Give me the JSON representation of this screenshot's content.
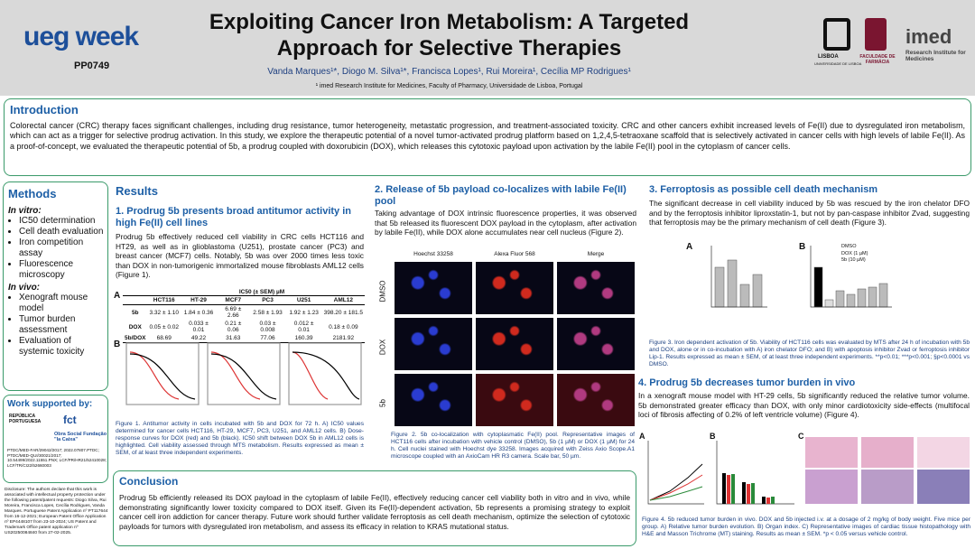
{
  "header": {
    "logo": "ueg week",
    "code": "PP0749",
    "title": "Exploiting Cancer Iron Metabolism: A Targeted Approach for Selective Therapies",
    "authors": "Vanda Marques¹*, Diogo M. Silva¹*, Francisca Lopes¹, Rui Moreira¹, Cecília MP Rodrigues¹",
    "affiliation": "¹ imed Research Institute for Medicines, Faculty of Pharmacy, Universidade de Lisboa, Portugal",
    "ulisboa": "LISBOA",
    "ulisboa_sub": "UNIVERSIDADE DE LISBOA",
    "ffarm": "FACULDADE DE FARMÁCIA",
    "imed": "imed",
    "imed_sub": "Research Institute for Medicines"
  },
  "introduction": {
    "heading": "Introduction",
    "text": "Colorectal cancer (CRC) therapy faces significant challenges, including drug resistance, tumor heterogeneity, metastatic progression, and treatment-associated toxicity. CRC and other cancers exhibit increased levels of Fe(II) due to dysregulated iron metabolism, which can act as a trigger for selective prodrug activation. In this study, we explore the therapeutic potential of a novel tumor-activated prodrug platform based on 1,2,4,5-tetraoxane scaffold that is selectively activated in cancer cells with high levels of labile Fe(II). As a proof-of-concept, we evaluated the therapeutic potential of 5b, a prodrug coupled with doxorubicin (DOX), which releases this cytotoxic payload upon activation by the labile Fe(II) pool in the cytoplasm of cancer cells."
  },
  "methods": {
    "heading": "Methods",
    "in_vitro_label": "In vitro:",
    "in_vitro": [
      "IC50 determination",
      "Cell death evaluation",
      "Iron competition assay",
      "Fluorescence microscopy"
    ],
    "in_vivo_label": "In vivo:",
    "in_vivo": [
      "Xenograft mouse model",
      "Tumor burden assessment",
      "Evaluation of systemic toxicity"
    ]
  },
  "support": {
    "heading": "Work supported by:",
    "funders": [
      "REPÚBLICA PORTUGUESA",
      "fct",
      "Obra Social Fundação \"la Caixa\""
    ],
    "grants": "PTDC/MED-FAR/29042/2017; 2022.07807.PTDC; PTDC/MED-QUI/30021/2017; 10.54499/2022.11551.PNX; LCF/PR/HR21/52410028; LCF/TR/CI22/52660003"
  },
  "disclosure": "Disclosure: The authors declare that this work is associated with intellectual property protection under the following patent/patent requests: Diogo Silva, Rui Moreira, Francisca Lopes, Cecília Rodrigues, Vanda Marques. Portuguese Patent Application nº PT117644 from 16-12-2021; European Patent Office Application nº EP4448107 from 23-10-2024; US Patent and Trademark Office patent application nº US20250084840 from 27-02-2025.",
  "results": {
    "heading": "Results",
    "section1": {
      "heading": "1. Prodrug 5b presents broad antitumor activity in high Fe(II) cell lines",
      "text": "Prodrug 5b effectively reduced cell viability in CRC cells HCT116 and HT29, as well as in glioblastoma (U251), prostate cancer (PC3) and breast cancer (MCF7) cells. Notably, 5b was over 2000 times less toxic than DOX in non-tumorigenic immortalized mouse fibroblasts AML12 cells (Figure 1).",
      "panel_a": "A",
      "panel_b": "B",
      "table": {
        "title": "IC50 (± SEM) µM",
        "columns": [
          "HCT116",
          "HT-29",
          "MCF7",
          "PC3",
          "U251",
          "AML12"
        ],
        "rows": [
          [
            "5b",
            "3.32 ± 1.10",
            "1.84 ± 0.36",
            "6.69 ± 2.66",
            "2.58 ± 1.93",
            "1.92 ± 1.23",
            "398.20 ± 181.5"
          ],
          [
            "DOX",
            "0.05 ± 0.02",
            "0.033 ± 0.01",
            "0.21 ± 0.06",
            "0.03 ± 0.008",
            "0.012 ± 0.01",
            "0.18 ± 0.09"
          ],
          [
            "5b/DOX",
            "68.69",
            "49.22",
            "31.63",
            "77.06",
            "160.39",
            "2181.92"
          ]
        ]
      },
      "caption": "Figure 1. Antitumor activity in cells incubated with 5b and DOX for 72 h. A) IC50 values determined for cancer cells HCT116, HT-29, MCF7, PC3, U251, and AML12 cells. B) Dose-response curves for DOX (red) and 5b (black). IC50 shift between DOX 5b in AML12 cells is highlighted. Cell viability assessed through MTS metabolism. Results expressed as mean ± SEM, of at least three independent experiments."
    },
    "section2": {
      "heading": "2. Release of 5b payload co-localizes with labile Fe(II) pool",
      "text": "Taking advantage of DOX intrinsic fluorescence properties, it was observed that 5b released its fluorescent DOX payload in the cytoplasm, after activation by labile Fe(II), while DOX alone accumulates near cell nucleus (Figure 2).",
      "columns": [
        "Hoechst 33258",
        "Alexa Fluor 568",
        "Merge"
      ],
      "rows": [
        "DMSO",
        "DOX",
        "5b"
      ],
      "caption": "Figure 2. 5b co-localization with cytoplasmatic Fe(II) pool. Representative images of HCT116 cells after incubation with vehicle control (DMSO), 5b (1 µM) or DOX (1 µM) for 24 h. Cell nuclei stained with Hoechst dye 33258. Images acquired with Zeiss Axio Scope.A1 microscope coupled with an AxioCam HR R3 camera. Scale bar, 50 µm."
    },
    "section3": {
      "heading": "3. Ferroptosis as possible cell death mechanism",
      "text": "The significant decrease in cell viability induced by 5b was rescued by the iron chelator DFO and by the ferroptosis inhibitor liproxstatin-1, but not by pan-caspase inhibitor Zvad, suggesting that ferroptosis may be the primary mechanism of cell death (Figure 3).",
      "panel_a": "A",
      "panel_b": "B",
      "legend": [
        "DMSO",
        "DOX (1 µM)",
        "5b (10 µM)"
      ],
      "caption": "Figure 3. Iron dependent activation of 5b. Viability of HCT116 cells was evaluated by MTS after 24 h of incubation with 5b and DOX, alone or in co-incubation with A) iron chelator DFO; and B) with apoptosis inhibitor Zvad or ferroptosis inhibitor Lip-1. Results expressed as mean ± SEM, of at least three independent experiments. **p<0.01; ***p<0.001; §p<0.0001 vs DMSO."
    },
    "section4": {
      "heading": "4. Prodrug 5b decreases tumor burden in vivo",
      "text": "In a xenograft mouse model with HT-29 cells, 5b significantly reduced the relative tumor volume. 5b demonstrated greater efficacy than DOX, with only minor cardiotoxicity side-effects (multifocal loci of fibrosis affecting of 0.2% of left ventricle volume) (Figure 4).",
      "panel_a": "A",
      "panel_b": "B",
      "panel_c": "C",
      "caption": "Figure 4. 5b reduced tumor burden in vivo. DOX and 5b injected i.v. at a dosage of 2 mg/kg of body weight. Five mice per group. A) Relative tumor burden evolution. B) Organ index. C) Representative images of cardiac tissue histopathology with H&E and Masson Trichrome (MT) staining. Results as mean ± SEM. *p < 0.05 versus vehicle control."
    }
  },
  "conclusion": {
    "heading": "Conclusion",
    "text": "Prodrug 5b efficiently released its DOX payload in the cytoplasm of labile Fe(II), effectively reducing cancer cell viability both in vitro and in vivo, while demonstrating significantly lower toxicity compared to DOX itself. Given its Fe(II)-dependent activation, 5b represents a promising strategy to exploit cancer cell iron addiction for cancer therapy. Future work should further validate ferroptosis as cell death mechanism, optimize the selection of cytotoxic payloads for tumors with dysregulated iron metabolism, and assess its efficacy in relation to KRAS mutational status."
  }
}
